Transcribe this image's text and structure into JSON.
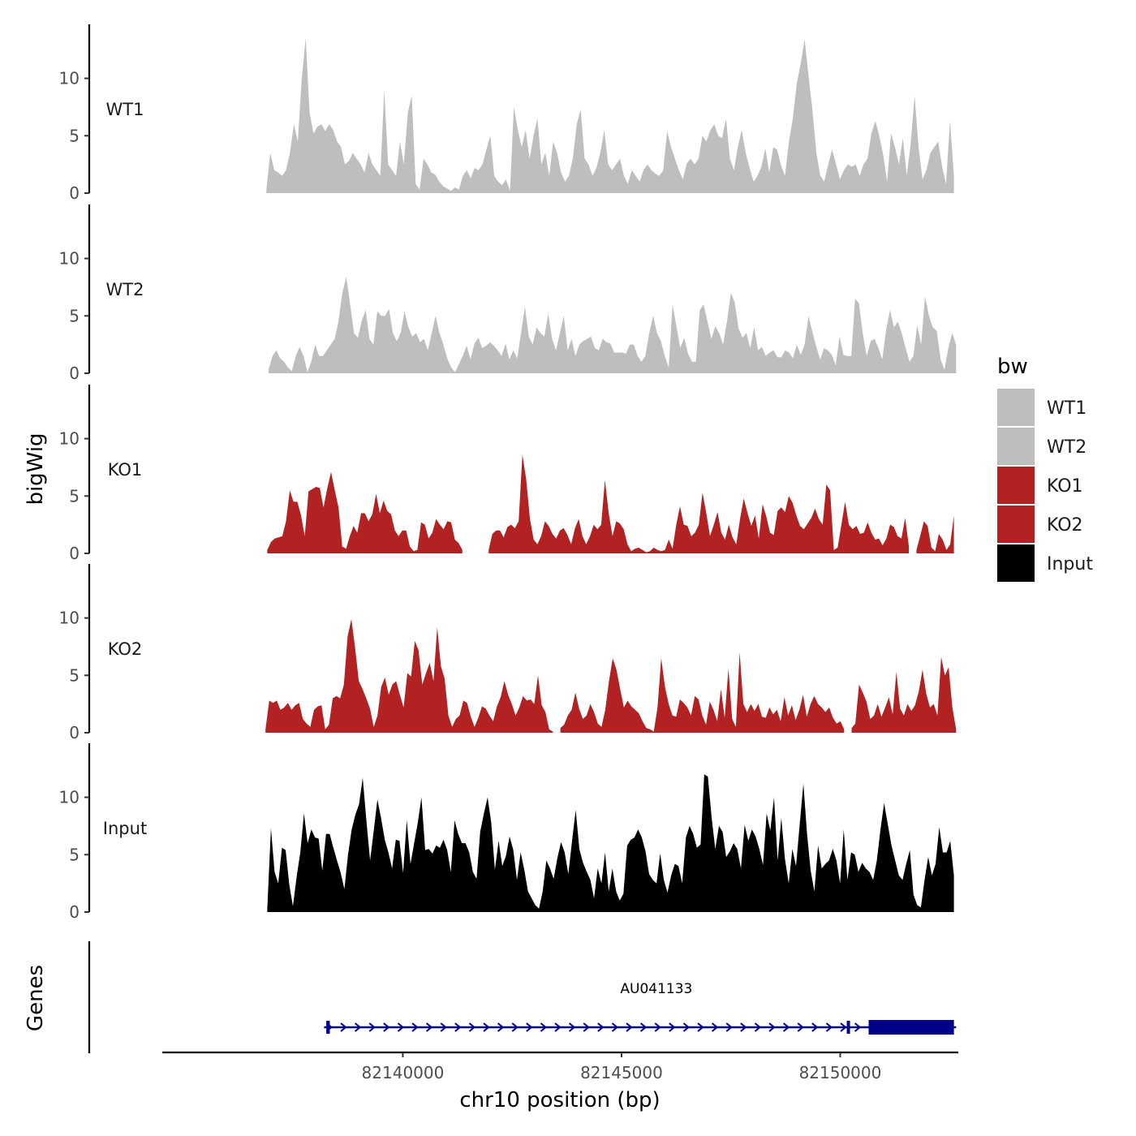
{
  "chart_data": {
    "type": "area",
    "chromosome": "chr10",
    "xlabel": "chr10 position (bp)",
    "ylabel": "bigWig",
    "xlim": [
      82134500,
      82152700
    ],
    "x_ticks": [
      82140000,
      82145000,
      82150000
    ],
    "x_tick_labels": [
      "82140000",
      "82145000",
      "82150000"
    ],
    "ylim": [
      0,
      14
    ],
    "y_ticks": [
      0,
      5,
      10
    ],
    "y_tick_labels": [
      "0",
      "5",
      "10"
    ],
    "legend": {
      "title": "bw",
      "position": "right"
    },
    "colors": {
      "WT1": "#bebebe",
      "WT2": "#bebebe",
      "KO1": "#b22222",
      "KO2": "#b22222",
      "Input": "#000000"
    },
    "tracks": [
      {
        "name": "WT1",
        "color": "#bebebe",
        "x_start": 82136880,
        "x_end": 82152600,
        "y": [
          0.3,
          3.5,
          2,
          1.8,
          1.5,
          2,
          3.5,
          6,
          4.5,
          10,
          13.5,
          7,
          5.2,
          5.8,
          6,
          5.4,
          6,
          5.5,
          4.5,
          4,
          2.5,
          2.8,
          3.5,
          3,
          2.5,
          1.8,
          3.5,
          2.5,
          2,
          1.5,
          9,
          2.5,
          2,
          1.5,
          4.5,
          2.5,
          7,
          8.5,
          0.8,
          0.3,
          3,
          2.5,
          1.8,
          1.6,
          1,
          0.6,
          0.4,
          0.2,
          0.5,
          0.3,
          1.5,
          2,
          1.3,
          2.2,
          2,
          2.5,
          3.8,
          5,
          1.5,
          1,
          0.7,
          1.2,
          0.2,
          7.5,
          5.5,
          4,
          5.5,
          3,
          5,
          6.5,
          2.5,
          3.5,
          1.5,
          4.5,
          3.5,
          1.8,
          1,
          1.5,
          3,
          6,
          7.3,
          3,
          2.5,
          1.5,
          2.2,
          3.5,
          5.5,
          2.5,
          2,
          2.5,
          3,
          1.5,
          0.8,
          2,
          1.5,
          1,
          2,
          2.5,
          2,
          1.7,
          1.5,
          2,
          5.4,
          4,
          3,
          2,
          1.2,
          2.6,
          3,
          2.5,
          3,
          5,
          4.5,
          5.5,
          6,
          5,
          4.8,
          6.5,
          3,
          2,
          4,
          5.5,
          3.5,
          2.2,
          1,
          1.5,
          2.3,
          3.9,
          1.8,
          4,
          3.8,
          2.4,
          1.5,
          4.5,
          6.5,
          9.5,
          11.3,
          13.4,
          10.2,
          7.2,
          3.5,
          1.5,
          1,
          2.5,
          3.8,
          2.5,
          1.2,
          2,
          2.5,
          2.3,
          2.5,
          1.5,
          2.5,
          3,
          5.2,
          6.3,
          5,
          3.3,
          1,
          5.2,
          4,
          2.5,
          4.8,
          1.5,
          4.3,
          8.5,
          4,
          1.2,
          2,
          3.5,
          4,
          4.5,
          2.3,
          0.8,
          6.3,
          1.5
        ]
      },
      {
        "name": "WT2",
        "color": "#bebebe",
        "x_start": 82136930,
        "x_end": 82152650,
        "y": [
          0.3,
          1.5,
          2,
          1.3,
          1,
          0.5,
          0.2,
          1.5,
          2.3,
          1.5,
          0.1,
          1,
          2.5,
          1.5,
          1.5,
          2,
          2.5,
          3,
          4.5,
          7,
          8.4,
          6,
          3.5,
          3.1,
          4.6,
          5.5,
          3,
          2.5,
          5.4,
          5,
          5,
          5.6,
          3.5,
          2.8,
          3.5,
          5.4,
          4,
          3.2,
          3.5,
          2.7,
          3,
          2,
          3.5,
          5,
          3.5,
          2.5,
          1.3,
          0.5,
          0.1,
          0.8,
          1.5,
          2.4,
          1.2,
          2.6,
          3.1,
          2.2,
          2.4,
          2.7,
          2.4,
          2,
          1.5,
          2.6,
          1.2,
          2,
          1.3,
          3.5,
          5.8,
          3.2,
          2.5,
          4,
          3.5,
          3.2,
          5.2,
          3,
          2,
          3.5,
          5,
          2,
          3,
          1.5,
          2.5,
          2.8,
          3,
          3.2,
          2.2,
          2,
          3,
          2.7,
          2.6,
          1.8,
          1.8,
          1.8,
          1.7,
          2.5,
          2.5,
          1.5,
          1,
          1.5,
          3.5,
          5,
          3.5,
          2.8,
          1.5,
          0.5,
          6,
          4.1,
          2.2,
          3.1,
          1.7,
          1,
          1,
          5.5,
          6,
          4.5,
          3,
          4.1,
          3.5,
          2.5,
          4.5,
          7,
          6.2,
          3.9,
          3.1,
          3.5,
          2.2,
          4,
          2,
          2.3,
          1.5,
          1.8,
          2,
          1.4,
          1.4,
          2,
          1.8,
          1.3,
          2.5,
          1.6,
          2.5,
          5,
          3.6,
          2.3,
          1.2,
          2.2,
          2,
          1.6,
          0.7,
          3.2,
          1.6,
          1.5,
          1.5,
          6.5,
          6.1,
          3.4,
          1.5,
          2.8,
          3,
          2.2,
          1.2,
          3.8,
          5.5,
          4,
          4.5,
          3.5,
          2.2,
          1,
          1.5,
          4.2,
          2.5,
          6.7,
          5,
          4,
          3.7,
          1.2,
          0.3,
          2.2,
          3.5,
          2.5
        ]
      },
      {
        "name": "KO1",
        "color": "#b22222",
        "x_start": 82136900,
        "x_end": 82152600,
        "y": [
          0.3,
          1,
          1.3,
          1.4,
          1.5,
          2.8,
          5.5,
          4.5,
          4.5,
          3.3,
          1.5,
          5.4,
          5.6,
          5.8,
          5.7,
          4,
          5.7,
          7.1,
          5.5,
          4,
          0.6,
          0.4,
          1.5,
          2.4,
          1.8,
          3.5,
          3.5,
          2.8,
          3.4,
          5.2,
          3.5,
          4.6,
          3.7,
          3.4,
          2,
          1.5,
          2,
          2,
          0.6,
          0.2,
          0.3,
          2.7,
          2.5,
          1.3,
          1.8,
          3,
          2.5,
          2.1,
          2.8,
          2.7,
          1.2,
          0.9,
          0.3,
          null,
          null,
          null,
          null,
          null,
          null,
          0.3,
          1.7,
          2,
          2,
          1.4,
          2.3,
          2.5,
          2.2,
          2.8,
          8.6,
          6.5,
          3,
          1.2,
          0.8,
          1.5,
          2.8,
          2.4,
          1.7,
          1.3,
          2,
          2.2,
          1.6,
          0.8,
          2.2,
          3,
          1.5,
          0.8,
          1.5,
          2.5,
          2.1,
          2.5,
          6.4,
          3.5,
          1.5,
          2.8,
          2.6,
          2.1,
          0.8,
          0.2,
          0.4,
          0.5,
          0.3,
          0.1,
          0.2,
          0.5,
          0.3,
          0.2,
          0.3,
          1.2,
          0.4,
          2.5,
          4.1,
          2.5,
          2.4,
          1.5,
          1.8,
          2.5,
          5.3,
          3.5,
          1.5,
          2.5,
          3.6,
          1.8,
          1.2,
          2.5,
          1.4,
          0.8,
          3,
          4.8,
          3.5,
          2.4,
          3.3,
          1.3,
          4.3,
          3.2,
          1.8,
          1.6,
          3.7,
          4,
          3.6,
          5,
          4.4,
          3.3,
          2.4,
          2.1,
          2.6,
          3.1,
          3.9,
          3,
          2.5,
          6,
          5.5,
          0.3,
          0.5,
          2.5,
          4.5,
          2.5,
          2.1,
          2.4,
          1.7,
          1.8,
          2.7,
          1.8,
          1.2,
          1.3,
          0.7,
          1.3,
          2.5,
          2.3,
          1.5,
          1.3,
          3.1,
          0.6,
          null,
          0.3,
          1.5,
          2.8,
          2.4,
          0.5,
          0.2,
          1.7,
          1.2,
          0.3,
          0.8,
          3.3
        ]
      },
      {
        "name": "KO2",
        "color": "#b22222",
        "x_start": 82136860,
        "x_end": 82152650,
        "y": [
          0.3,
          2.8,
          2.6,
          2.8,
          2,
          2.2,
          2.6,
          2,
          2.4,
          2.6,
          1.2,
          0.8,
          0.5,
          2,
          2.3,
          2.4,
          0.3,
          0.7,
          3,
          3.2,
          3,
          4.2,
          8.4,
          9.9,
          7.4,
          4.5,
          3.8,
          3,
          2.1,
          0.5,
          1.5,
          4,
          4.8,
          3.3,
          4.2,
          4.5,
          3.3,
          2.2,
          5.2,
          4.9,
          8,
          7.2,
          4.2,
          5.2,
          6.1,
          4.5,
          9.2,
          5.8,
          4.7,
          1.5,
          0.5,
          1.2,
          1.5,
          2.8,
          2.6,
          1.4,
          0.5,
          1.3,
          2.3,
          2.1,
          1.5,
          1,
          2.3,
          3.1,
          4.5,
          3.3,
          2.5,
          1.5,
          2.2,
          3.2,
          2.8,
          2.9,
          2.5,
          5,
          2.4,
          1.8,
          0.3,
          0.1,
          null,
          0.4,
          0.7,
          1.5,
          2,
          3.5,
          2.1,
          1.2,
          1.5,
          2.5,
          1.8,
          0.8,
          0.5,
          2,
          4.5,
          6.5,
          5.5,
          3.8,
          2.2,
          2.8,
          2.3,
          2,
          1.7,
          1,
          0.4,
          0.3,
          0.1,
          2.2,
          6.5,
          4,
          2.5,
          1.5,
          1.4,
          2.9,
          2.6,
          2.2,
          1.5,
          3.2,
          2.9,
          1.5,
          0.7,
          2.7,
          2,
          1,
          3.8,
          1.3,
          5.6,
          1.2,
          0.5,
          7,
          2.5,
          1.8,
          2.5,
          1.9,
          2.5,
          1.4,
          1.3,
          2.2,
          1.6,
          2,
          1,
          3.1,
          1.5,
          2.4,
          1.1,
          2,
          3.3,
          1.4,
          2.5,
          3.2,
          2.5,
          2.2,
          1.8,
          2.2,
          1.3,
          0.8,
          1,
          0.3,
          null,
          0.4,
          0.8,
          4.2,
          3.5,
          2.7,
          1.2,
          1.5,
          2.5,
          1.4,
          2.2,
          3.1,
          1.6,
          5.3,
          2.1,
          1.5,
          2.5,
          1.9,
          2.4,
          3.6,
          5.5,
          3.4,
          2.2,
          2.5,
          1.5,
          6.6,
          5,
          5.7,
          2.2,
          0.3
        ]
      },
      {
        "name": "Input",
        "color": "#000000",
        "x_start": 82136900,
        "x_end": 82152600,
        "y": [
          0.3,
          7.3,
          3.5,
          2.5,
          5.6,
          5.4,
          2.4,
          0.5,
          3.1,
          5.2,
          8.6,
          6,
          7.2,
          6.5,
          6.4,
          3.6,
          6.8,
          6.8,
          5.6,
          4.5,
          3.4,
          2,
          5,
          7.2,
          8.5,
          9.4,
          11.7,
          8,
          4.5,
          7.1,
          9.8,
          8.2,
          6.3,
          5.2,
          3.8,
          6.3,
          6.2,
          3.4,
          8,
          4.2,
          6,
          7.8,
          10,
          5.4,
          5.5,
          5.1,
          5.8,
          5.6,
          6.3,
          5.4,
          3.5,
          8,
          6.8,
          6,
          6,
          5.2,
          3.5,
          2.9,
          7,
          8.6,
          10,
          7.8,
          3.7,
          6.2,
          4,
          4.9,
          6.6,
          5.4,
          2.8,
          5.2,
          3.7,
          1.8,
          1.2,
          0.6,
          0.3,
          1.8,
          4.5,
          3.8,
          2.9,
          4.7,
          6.1,
          5.2,
          3.3,
          6.2,
          8.9,
          5.5,
          4.3,
          3.5,
          2.8,
          1.2,
          3.8,
          2.5,
          5.2,
          1.8,
          3.8,
          1.8,
          1,
          1.6,
          5.8,
          6.3,
          6.5,
          7.2,
          6.5,
          5.3,
          3.3,
          2.8,
          2.5,
          5.1,
          2.8,
          1.7,
          3.2,
          4.2,
          4,
          2.5,
          6.5,
          7.5,
          6.8,
          5.6,
          5.9,
          12,
          11.8,
          8.3,
          5.5,
          7.5,
          7,
          4.8,
          5.3,
          6,
          5.5,
          3.8,
          7.6,
          6.2,
          7.2,
          6.6,
          5.5,
          4.1,
          8.6,
          7.1,
          10,
          4.5,
          8.2,
          4.6,
          2.5,
          5.5,
          4,
          7.6,
          11.2,
          6.8,
          3.6,
          1.8,
          5.8,
          3.8,
          4.2,
          4.5,
          5.5,
          4.5,
          2.5,
          7.2,
          2.8,
          5.2,
          5,
          3.5,
          4.3,
          3.8,
          3.5,
          2.8,
          4.5,
          7.2,
          9.5,
          7.6,
          5.8,
          4.5,
          3.2,
          2.8,
          4.2,
          5.4,
          1.5,
          0.6,
          0.4,
          2.8,
          4.8,
          3.2,
          4.2,
          7.4,
          5.2,
          5.2,
          6.2,
          3.2
        ]
      }
    ],
    "genes": {
      "title": "Genes",
      "items": [
        {
          "name": "AU041133",
          "strand": "+",
          "start": 82138200,
          "end": 82152650,
          "exons": [
            [
              82138250,
              82138330
            ],
            [
              82150150,
              82150200
            ],
            [
              82150650,
              82152600
            ]
          ]
        }
      ]
    }
  }
}
